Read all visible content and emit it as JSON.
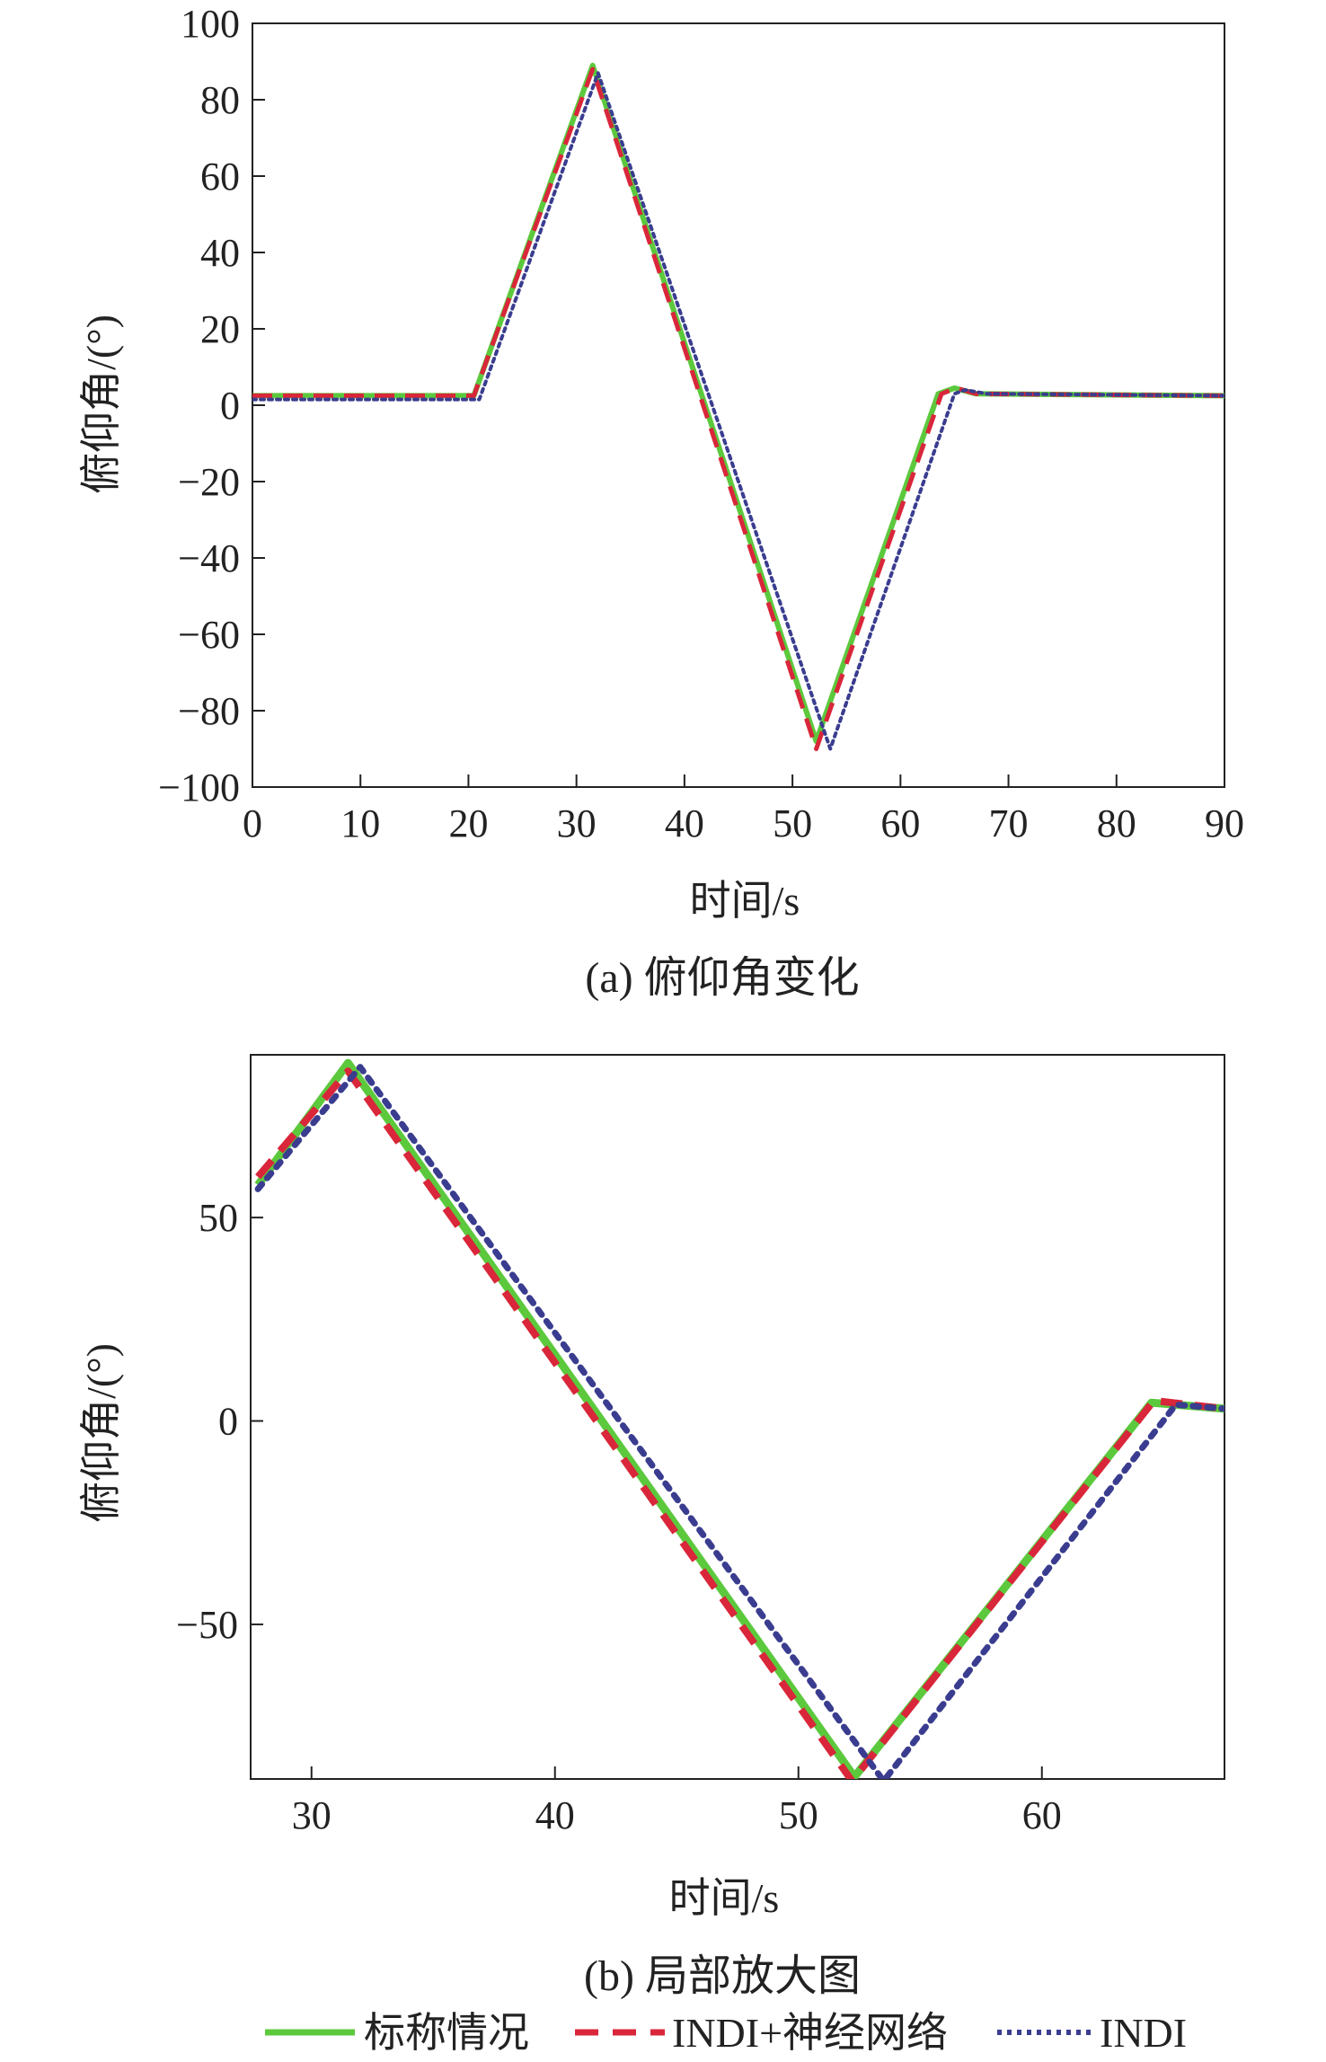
{
  "chart_data": [
    {
      "type": "line",
      "caption": "(a) 俯仰角变化",
      "xlabel": "时间/s",
      "ylabel": "俯仰角/(°)",
      "xlim": [
        0,
        90
      ],
      "ylim": [
        -100,
        100
      ],
      "xticks": [
        0,
        10,
        20,
        30,
        40,
        50,
        60,
        70,
        80,
        90
      ],
      "yticks": [
        100,
        80,
        60,
        40,
        20,
        0,
        -20,
        -40,
        -60,
        -80,
        -100
      ],
      "ytick_labels": [
        "100",
        "80",
        "60",
        "40",
        "20",
        "0",
        "−20",
        "−40",
        "−60",
        "−80",
        "−100"
      ],
      "series": [
        {
          "name": "标称情况",
          "color": "#5cc93d",
          "style": "solid",
          "x": [
            0,
            20.5,
            31.5,
            52.2,
            63.5,
            65,
            67,
            90
          ],
          "y": [
            2.5,
            2.5,
            89,
            -88,
            3,
            4.5,
            3,
            2.5
          ]
        },
        {
          "name": "INDI+神经网络",
          "color": "#d9263a",
          "style": "dashed",
          "x": [
            0,
            20.5,
            31.5,
            52.2,
            63.8,
            65.2,
            67,
            90
          ],
          "y": [
            2.5,
            2.5,
            88,
            -90,
            3,
            4.5,
            3,
            2.5
          ]
        },
        {
          "name": "INDI",
          "color": "#3a3d8f",
          "style": "dotted",
          "x": [
            0,
            21,
            32,
            53.5,
            65,
            66,
            68,
            90
          ],
          "y": [
            1.5,
            1.5,
            87,
            -90,
            3,
            4,
            3,
            2.5
          ]
        }
      ]
    },
    {
      "type": "line",
      "caption": "(b) 局部放大图",
      "xlabel": "时间/s",
      "ylabel": "俯仰角/(°)",
      "xlim": [
        27.5,
        67.5
      ],
      "ylim": [
        -88,
        90
      ],
      "xticks": [
        30,
        40,
        50,
        60
      ],
      "yticks": [
        50,
        0,
        -50
      ],
      "ytick_labels": [
        "50",
        "0",
        "−50"
      ],
      "series": [
        {
          "name": "标称情况",
          "color": "#5cc93d",
          "style": "solid",
          "x": [
            27.8,
            31.5,
            52.3,
            64.5,
            67.5
          ],
          "y": [
            58,
            88,
            -87.5,
            4.5,
            3
          ]
        },
        {
          "name": "INDI+神经网络",
          "color": "#d9263a",
          "style": "dashed",
          "x": [
            27.8,
            31.5,
            52.2,
            64.6,
            67.5
          ],
          "y": [
            60,
            86,
            -88.5,
            5,
            3
          ]
        },
        {
          "name": "INDI",
          "color": "#3a3d8f",
          "style": "dotted",
          "x": [
            27.8,
            32,
            53.5,
            65.5,
            67.5
          ],
          "y": [
            57,
            87,
            -88.5,
            4,
            3
          ]
        }
      ]
    }
  ],
  "legend": [
    {
      "label": "标称情况",
      "color": "#5cc93d",
      "style": "solid"
    },
    {
      "label": "INDI+神经网络",
      "color": "#d9263a",
      "style": "dashed"
    },
    {
      "label": "INDI",
      "color": "#3a3d8f",
      "style": "dotted"
    }
  ]
}
